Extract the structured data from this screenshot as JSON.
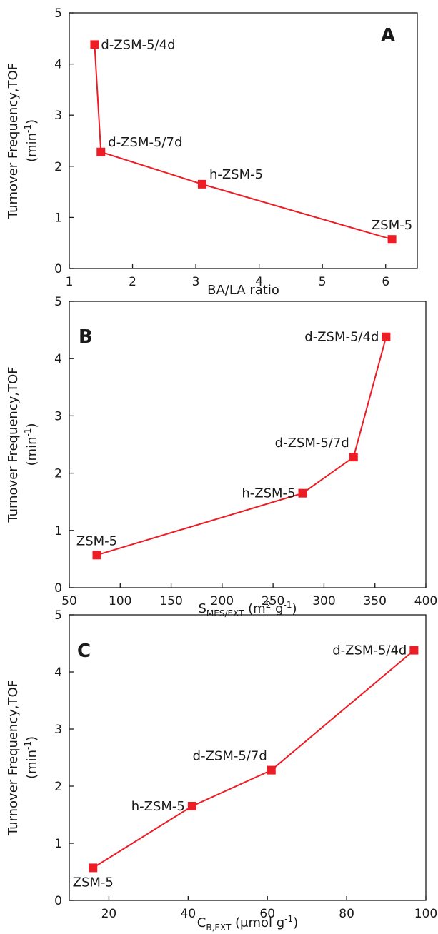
{
  "chart_data": [
    {
      "type": "line",
      "panel": "A",
      "ylabel_line1": "Turnover Frequency,TOF",
      "ylabel_line2_base": "(min",
      "ylabel_line2_sup": "-1",
      "ylabel_line2_end": ")",
      "xlabel_main": "BA/LA ratio",
      "xlim": [
        1,
        6.5
      ],
      "ylim": [
        0,
        5
      ],
      "xticks": [
        1,
        2,
        3,
        4,
        5,
        6
      ],
      "yticks": [
        0,
        1,
        2,
        3,
        4,
        5
      ],
      "series": [
        {
          "color": "#ee1c24",
          "points": [
            {
              "x": 1.4,
              "y": 4.38,
              "label": "d-ZSM-5/4d",
              "label_pos": "right"
            },
            {
              "x": 1.5,
              "y": 2.28,
              "label": "d-ZSM-5/7d",
              "label_pos": "upper-right"
            },
            {
              "x": 3.1,
              "y": 1.65,
              "label": "h-ZSM-5",
              "label_pos": "upper-right"
            },
            {
              "x": 6.1,
              "y": 0.57,
              "label": "ZSM-5",
              "label_pos": "above"
            }
          ]
        }
      ]
    },
    {
      "type": "line",
      "panel": "B",
      "ylabel_line1": "Turnover Frequency,TOF",
      "ylabel_line2_base": "(min",
      "ylabel_line2_sup": "-1",
      "ylabel_line2_end": ")",
      "xlabel_main": "S",
      "xlabel_sub": "MES/EXT",
      "xlabel_rest": " (m",
      "xlabel_sup1": "2",
      "xlabel_rest2": " g",
      "xlabel_sup2": "-1",
      "xlabel_end": ")",
      "xlim": [
        50,
        400
      ],
      "ylim": [
        0,
        5
      ],
      "xticks": [
        50,
        100,
        150,
        200,
        250,
        300,
        350,
        400
      ],
      "yticks": [
        0,
        1,
        2,
        3,
        4,
        5
      ],
      "series": [
        {
          "color": "#ee1c24",
          "points": [
            {
              "x": 77,
              "y": 0.57,
              "label": "ZSM-5",
              "label_pos": "above"
            },
            {
              "x": 279,
              "y": 1.65,
              "label": "h-ZSM-5",
              "label_pos": "left"
            },
            {
              "x": 329,
              "y": 2.28,
              "label": "d-ZSM-5/7d",
              "label_pos": "upper-left"
            },
            {
              "x": 361,
              "y": 4.38,
              "label": "d-ZSM-5/4d",
              "label_pos": "left"
            }
          ]
        }
      ]
    },
    {
      "type": "line",
      "panel": "C",
      "ylabel_line1": "Turnover Frequency,TOF",
      "ylabel_line2_base": "(min",
      "ylabel_line2_sup": "-1",
      "ylabel_line2_end": ")",
      "xlabel_main": "C",
      "xlabel_sub": "B,EXT",
      "xlabel_rest": " (μmol g",
      "xlabel_sup1": "-1",
      "xlabel_end": ")",
      "xlim": [
        10,
        100
      ],
      "ylim": [
        0,
        5
      ],
      "xticks": [
        20,
        40,
        60,
        80,
        100
      ],
      "yticks": [
        0,
        1,
        2,
        3,
        4,
        5
      ],
      "series": [
        {
          "color": "#ee1c24",
          "points": [
            {
              "x": 16,
              "y": 0.57,
              "label": "ZSM-5",
              "label_pos": "below"
            },
            {
              "x": 41,
              "y": 1.65,
              "label": "h-ZSM-5",
              "label_pos": "left"
            },
            {
              "x": 61,
              "y": 2.28,
              "label": "d-ZSM-5/7d",
              "label_pos": "upper-left"
            },
            {
              "x": 97,
              "y": 4.38,
              "label": "d-ZSM-5/4d",
              "label_pos": "left"
            }
          ]
        }
      ]
    }
  ]
}
